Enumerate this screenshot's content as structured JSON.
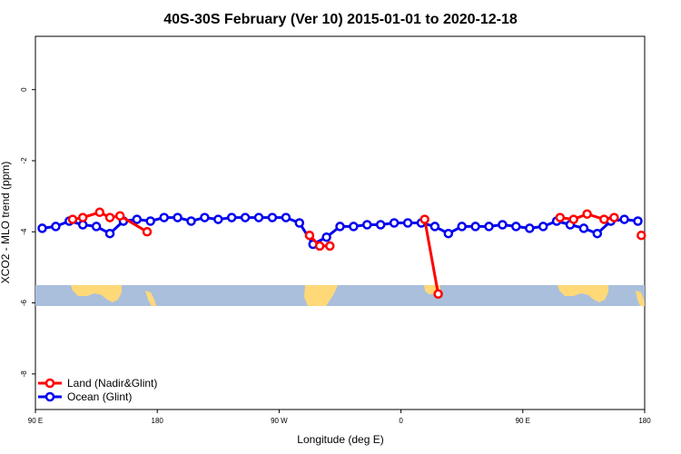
{
  "chart_data": {
    "type": "line",
    "title": "40S-30S February (Ver 10)   2015-01-01 to 2020-12-18",
    "xlabel": "Longitude (deg E)",
    "ylabel": "XCO2 - MLO trend (ppm)",
    "xlim": [
      90,
      540
    ],
    "ylim": [
      -9,
      1.5
    ],
    "x_ticks": [
      {
        "value": 90,
        "label": "90 E"
      },
      {
        "value": 180,
        "label": "180"
      },
      {
        "value": 270,
        "label": "90 W"
      },
      {
        "value": 360,
        "label": "0"
      },
      {
        "value": 450,
        "label": "90 E"
      },
      {
        "value": 540,
        "label": "180"
      }
    ],
    "y_ticks": [
      {
        "value": 0,
        "label": "0"
      },
      {
        "value": -2,
        "label": "-2"
      },
      {
        "value": -4,
        "label": "-4"
      },
      {
        "value": -6,
        "label": "-6"
      },
      {
        "value": -8,
        "label": "-8"
      }
    ],
    "legend_position": "bottom-left",
    "colors": {
      "land": "#ff0000",
      "ocean": "#0000ee",
      "map_ocean": "#a9bfdc",
      "map_land": "#ffd878"
    },
    "series": [
      {
        "name": "Land (Nadir&Glint)",
        "color": "#ff0000",
        "segments": [
          [
            [
              117.5,
              -3.65
            ],
            [
              125,
              -3.6
            ],
            [
              137.5,
              -3.45
            ],
            [
              145,
              -3.6
            ],
            [
              152.5,
              -3.55
            ],
            [
              172.5,
              -4.0
            ]
          ],
          [
            [
              292.5,
              -4.1
            ],
            [
              300,
              -4.4
            ],
            [
              307.5,
              -4.4
            ]
          ],
          [
            [
              377.5,
              -3.65
            ],
            [
              387.5,
              -5.75
            ]
          ],
          [
            [
              477.5,
              -3.6
            ],
            [
              487.5,
              -3.65
            ],
            [
              497.5,
              -3.5
            ],
            [
              510,
              -3.65
            ],
            [
              517.5,
              -3.6
            ]
          ],
          [
            [
              537.5,
              -4.1
            ]
          ]
        ]
      },
      {
        "name": "Ocean (Glint)",
        "color": "#0000ee",
        "segments": [
          [
            [
              95,
              -3.9
            ],
            [
              105,
              -3.85
            ],
            [
              115,
              -3.7
            ],
            [
              125,
              -3.8
            ],
            [
              135,
              -3.85
            ],
            [
              145,
              -4.05
            ],
            [
              155,
              -3.7
            ],
            [
              165,
              -3.65
            ],
            [
              175,
              -3.7
            ],
            [
              185,
              -3.6
            ],
            [
              195,
              -3.6
            ],
            [
              205,
              -3.7
            ],
            [
              215,
              -3.6
            ],
            [
              225,
              -3.65
            ],
            [
              235,
              -3.6
            ],
            [
              245,
              -3.6
            ],
            [
              255,
              -3.6
            ],
            [
              265,
              -3.6
            ],
            [
              275,
              -3.6
            ],
            [
              285,
              -3.75
            ],
            [
              295,
              -4.35
            ],
            [
              305,
              -4.15
            ],
            [
              315,
              -3.85
            ],
            [
              325,
              -3.85
            ],
            [
              335,
              -3.8
            ],
            [
              345,
              -3.8
            ],
            [
              355,
              -3.75
            ],
            [
              365,
              -3.75
            ],
            [
              375,
              -3.75
            ],
            [
              385,
              -3.85
            ],
            [
              395,
              -4.05
            ],
            [
              405,
              -3.85
            ],
            [
              415,
              -3.85
            ],
            [
              425,
              -3.85
            ],
            [
              435,
              -3.8
            ],
            [
              445,
              -3.85
            ],
            [
              455,
              -3.9
            ],
            [
              465,
              -3.85
            ],
            [
              475,
              -3.7
            ],
            [
              485,
              -3.8
            ],
            [
              495,
              -3.9
            ],
            [
              505,
              -4.05
            ],
            [
              515,
              -3.7
            ],
            [
              525,
              -3.65
            ],
            [
              535,
              -3.7
            ]
          ]
        ]
      }
    ]
  }
}
